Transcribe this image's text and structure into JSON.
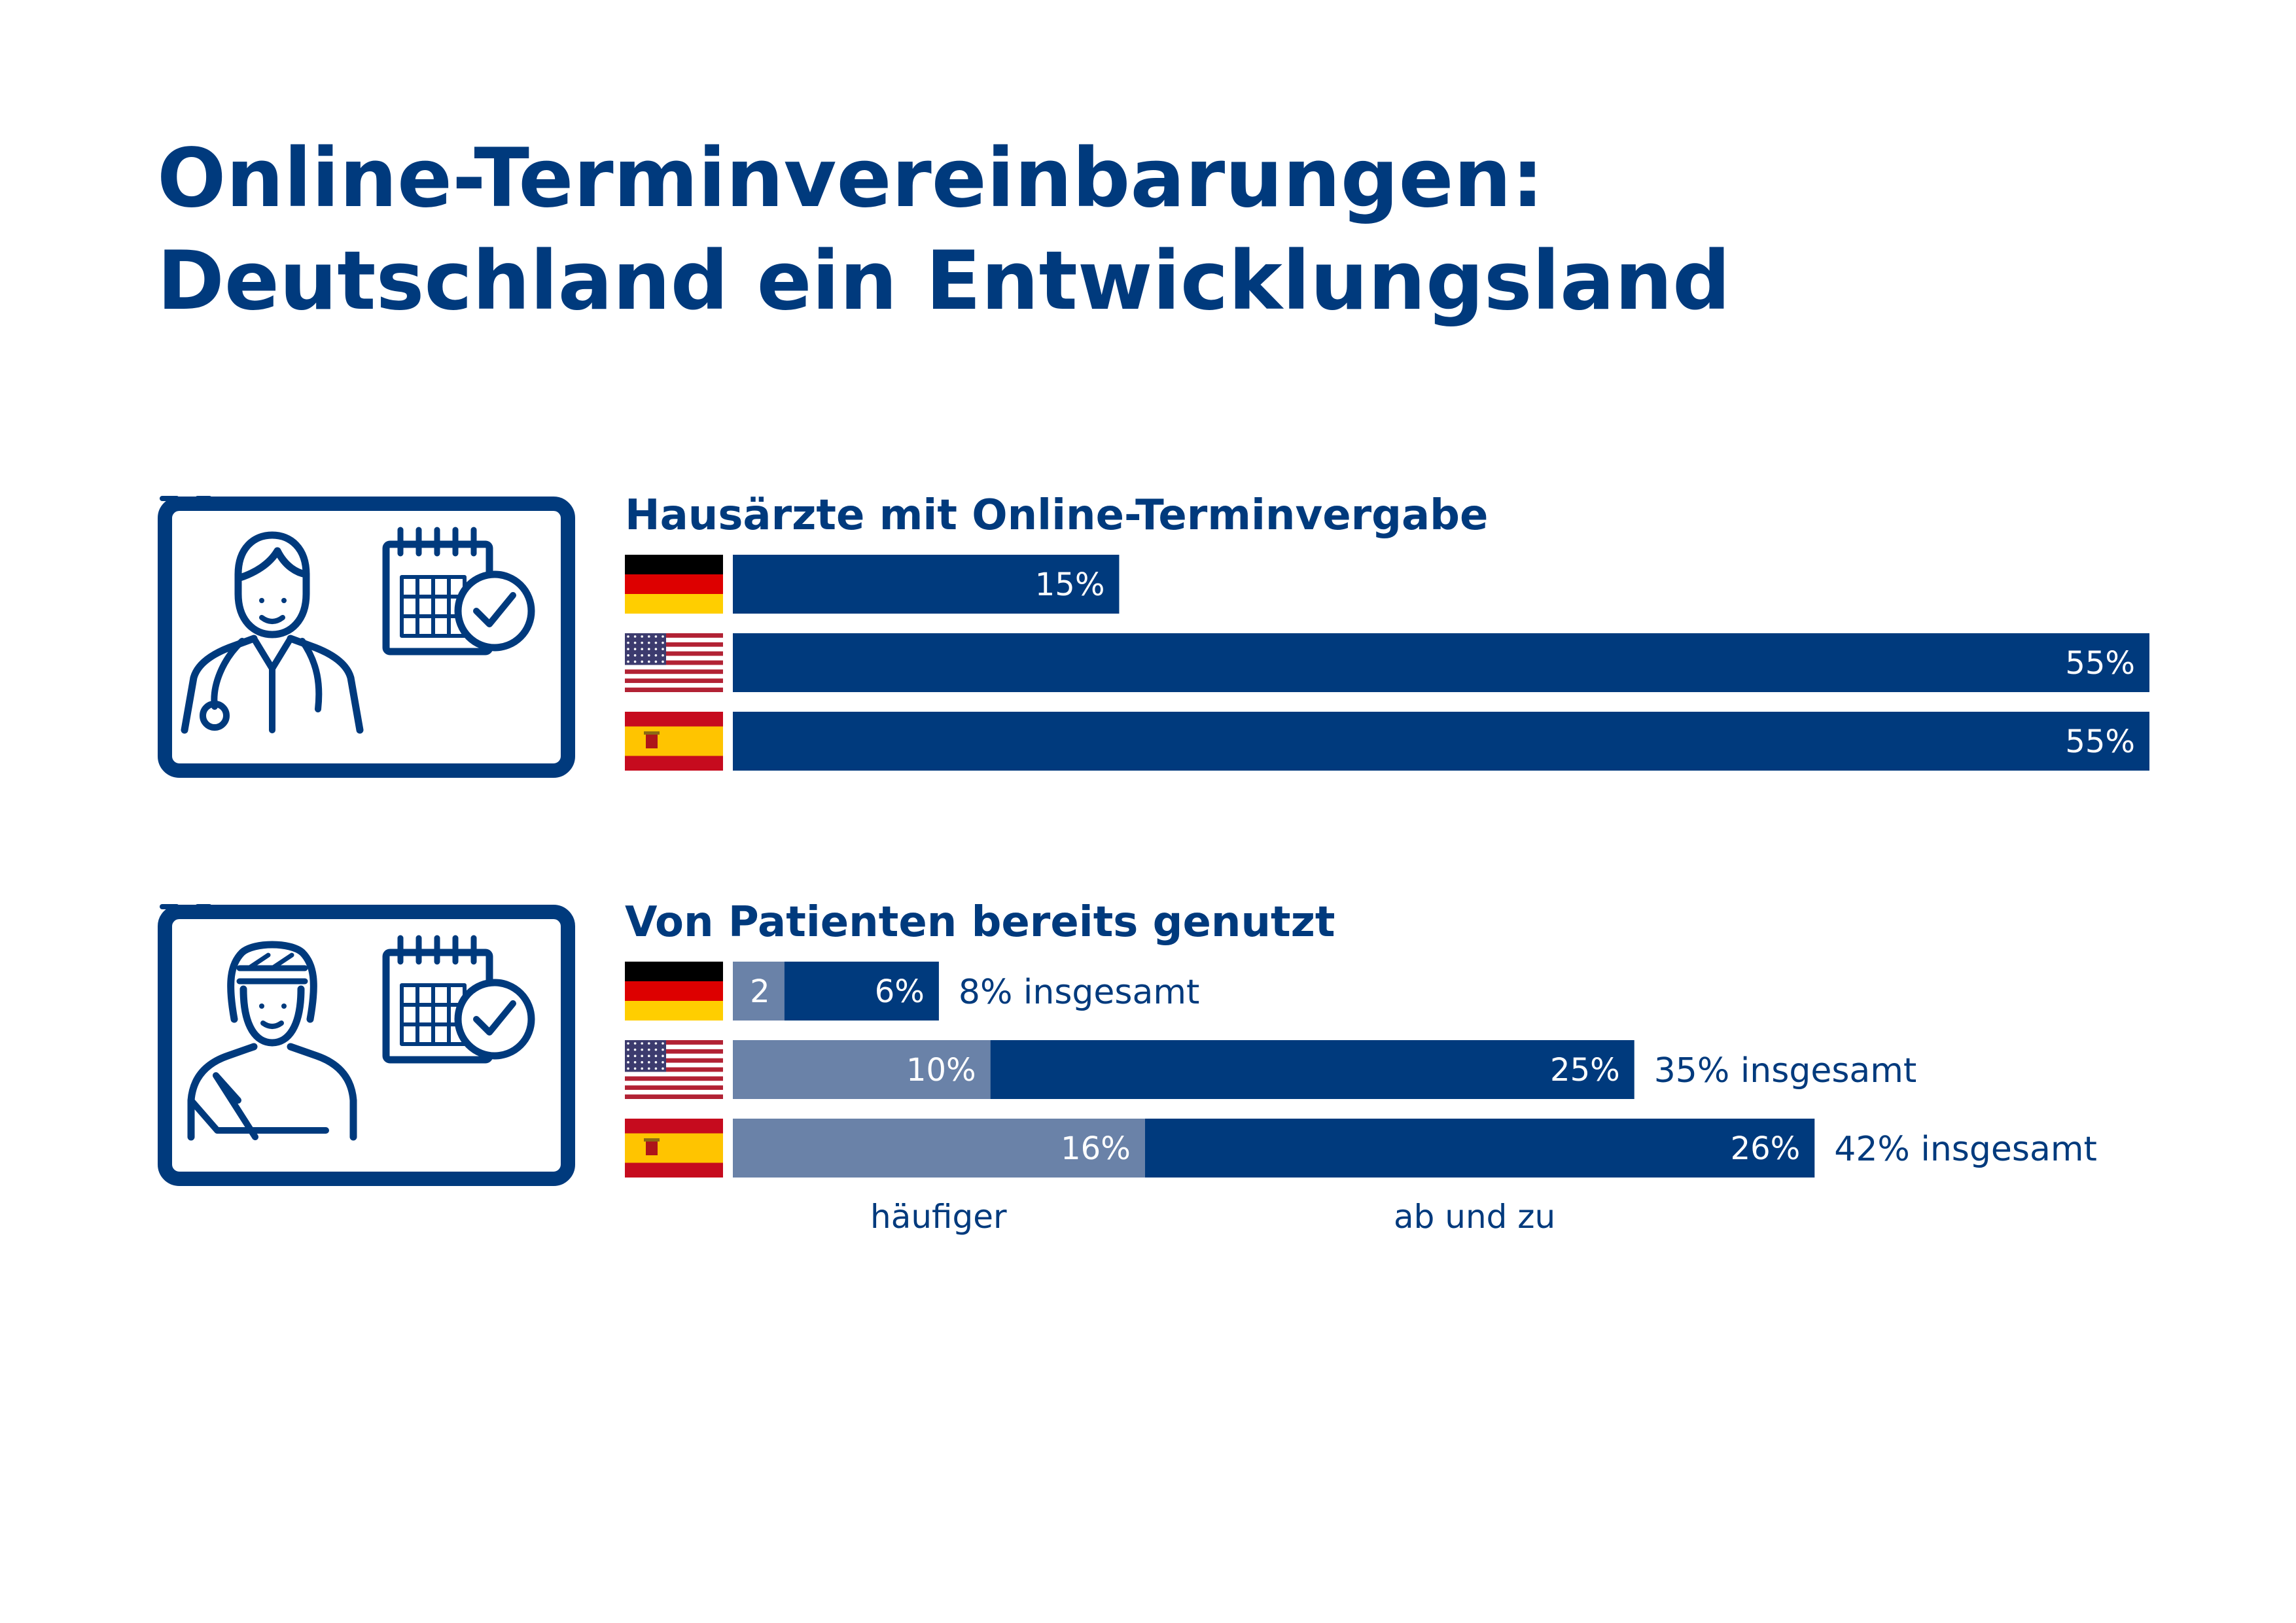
{
  "title": {
    "line1": "Online-Terminvereinbarungen:",
    "line2": "Deutschland ein Entwicklungsland"
  },
  "colors": {
    "dark_blue": "#003a7d",
    "light_blue": "#6a82a8"
  },
  "icons": [
    "doctor-calendar-icon",
    "patient-calendar-icon",
    "flag-germany-icon",
    "flag-usa-icon",
    "flag-spain-icon"
  ],
  "chart_data": [
    {
      "type": "bar",
      "orientation": "horizontal",
      "title": "Hausärzte mit Online-Terminvergabe",
      "categories": [
        "Deutschland",
        "USA",
        "Spanien"
      ],
      "series": [
        {
          "values": [
            15,
            55,
            55
          ]
        }
      ],
      "data_labels": [
        "15%",
        "55%",
        "55%"
      ],
      "xlim": [
        0,
        55
      ],
      "grid": false,
      "category_markers": "flags"
    },
    {
      "type": "bar",
      "orientation": "horizontal",
      "stacked": true,
      "title": "Von Patienten bereits genutzt",
      "categories": [
        "Deutschland",
        "USA",
        "Spanien"
      ],
      "series": [
        {
          "name": "häufiger",
          "values": [
            2,
            10,
            16
          ],
          "labels": [
            "2",
            "10%",
            "16%"
          ]
        },
        {
          "name": "ab und zu",
          "values": [
            6,
            25,
            26
          ],
          "labels": [
            "6%",
            "25%",
            "26%"
          ]
        }
      ],
      "totals": [
        "8% insgesamt",
        "35% insgesamt",
        "42% insgesamt"
      ],
      "xlim": [
        0,
        55
      ],
      "grid": false,
      "legend": "bottom",
      "category_markers": "flags"
    }
  ]
}
